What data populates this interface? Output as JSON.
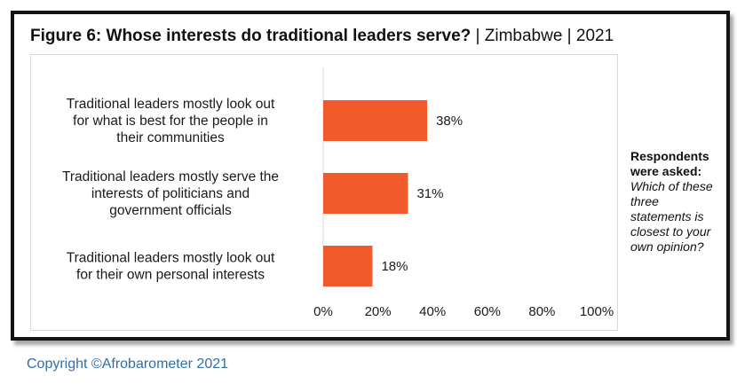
{
  "figure": {
    "title_bold": "Figure 6: Whose interests do traditional leaders serve?",
    "title_rest": " | Zimbabwe | 2021"
  },
  "note": {
    "label": "Respondents were asked:",
    "question": "Which of these three statements is closest to your own opinion?"
  },
  "copyright": "Copyright ©Afrobarometer 2021",
  "colors": {
    "bar": "#f15a2b",
    "axis": "#d9d9d9",
    "frame": "#141414",
    "copyright": "#2f6ea8"
  },
  "chart_data": {
    "type": "bar",
    "orientation": "horizontal",
    "categories": [
      "Traditional leaders mostly look out for what is best for the people in their communities",
      "Traditional leaders mostly serve the interests of politicians and government officials",
      "Traditional leaders mostly look out for their own personal interests"
    ],
    "category_lines": [
      [
        "Traditional leaders mostly look out",
        "for what is best for the people in",
        "their communities"
      ],
      [
        "Traditional leaders mostly serve the",
        "interests of politicians and",
        "government officials"
      ],
      [
        "Traditional leaders mostly look out",
        "for their own personal interests"
      ]
    ],
    "values": [
      38,
      31,
      18
    ],
    "value_labels": [
      "38%",
      "31%",
      "18%"
    ],
    "xlim": [
      0,
      100
    ],
    "xticks": [
      0,
      20,
      40,
      60,
      80,
      100
    ],
    "xtick_labels": [
      "0%",
      "20%",
      "40%",
      "60%",
      "80%",
      "100%"
    ],
    "grid": false,
    "legend": "none"
  }
}
